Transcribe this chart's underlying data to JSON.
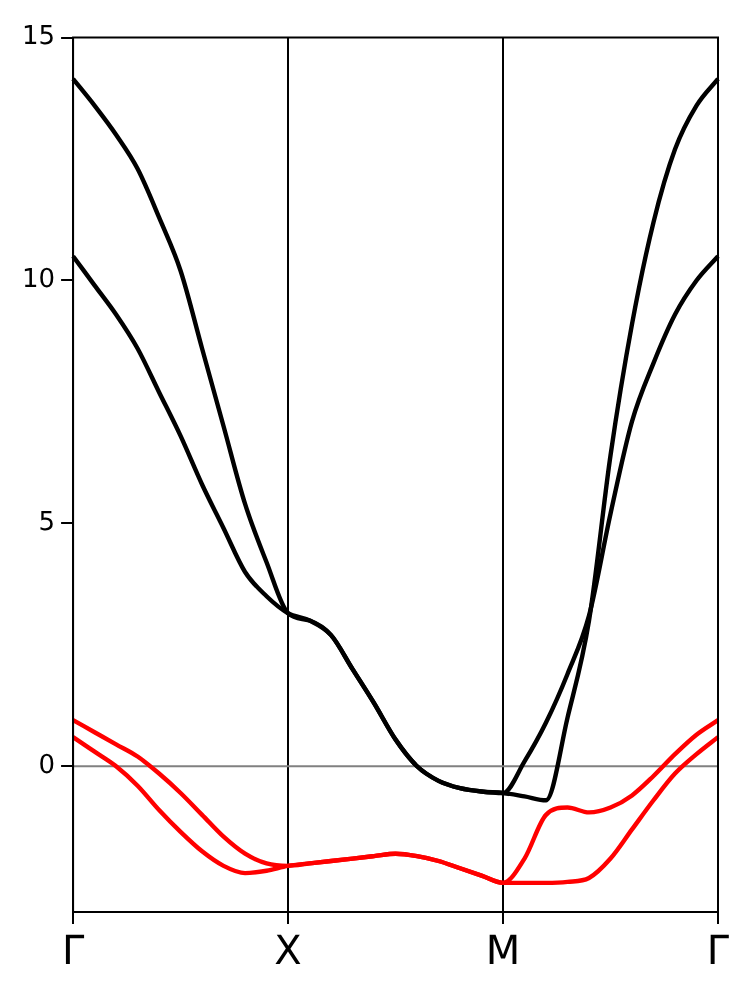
{
  "chart_data": {
    "type": "line",
    "categories": [
      "Γ",
      null,
      null,
      null,
      null,
      null,
      null,
      null,
      null,
      null,
      "X",
      null,
      null,
      null,
      null,
      null,
      null,
      null,
      null,
      null,
      "M",
      null,
      null,
      null,
      null,
      null,
      null,
      null,
      null,
      null,
      "Γ"
    ],
    "ylim": [
      -3,
      15
    ],
    "yticks": [
      0,
      5,
      10,
      15
    ],
    "grid": "x",
    "legend": false,
    "marker": "none",
    "line_style": "solid",
    "ref_lines": [
      {
        "axis": "y",
        "value": 0,
        "color": "#808080"
      }
    ],
    "series": [
      {
        "color": "#000000",
        "values": [
          14.15,
          13.6,
          13.0,
          12.3,
          11.3,
          10.2,
          8.6,
          7.0,
          5.4,
          4.2,
          3.15,
          3.0,
          2.7,
          2.0,
          1.3,
          0.55,
          0.0,
          -0.3,
          -0.45,
          -0.52,
          -0.55,
          -0.62,
          -0.7,
          1.0,
          3.0,
          6.4,
          9.1,
          11.2,
          12.7,
          13.6,
          14.15
        ]
      },
      {
        "color": "#000000",
        "values": [
          10.5,
          9.9,
          9.3,
          8.6,
          7.7,
          6.8,
          5.8,
          4.9,
          4.0,
          3.5,
          3.15,
          3.0,
          2.7,
          2.0,
          1.3,
          0.55,
          0.0,
          -0.3,
          -0.45,
          -0.52,
          -0.55,
          0.1,
          0.9,
          1.9,
          3.1,
          5.2,
          7.1,
          8.3,
          9.3,
          10.0,
          10.5
        ]
      },
      {
        "color": "#ff0000",
        "values": [
          0.95,
          0.7,
          0.45,
          0.2,
          -0.15,
          -0.55,
          -1.0,
          -1.45,
          -1.8,
          -2.0,
          -2.05,
          -2.0,
          -1.95,
          -1.9,
          -1.85,
          -1.8,
          -1.85,
          -1.95,
          -2.1,
          -2.25,
          -2.4,
          -1.9,
          -1.0,
          -0.85,
          -0.95,
          -0.85,
          -0.6,
          -0.2,
          0.25,
          0.65,
          0.95
        ]
      },
      {
        "color": "#ff0000",
        "values": [
          0.6,
          0.3,
          0.0,
          -0.4,
          -0.9,
          -1.35,
          -1.75,
          -2.05,
          -2.2,
          -2.15,
          -2.05,
          -2.0,
          -1.95,
          -1.9,
          -1.85,
          -1.8,
          -1.85,
          -1.95,
          -2.1,
          -2.25,
          -2.4,
          -2.4,
          -2.4,
          -2.38,
          -2.3,
          -1.9,
          -1.3,
          -0.7,
          -0.15,
          0.25,
          0.6
        ]
      }
    ]
  }
}
